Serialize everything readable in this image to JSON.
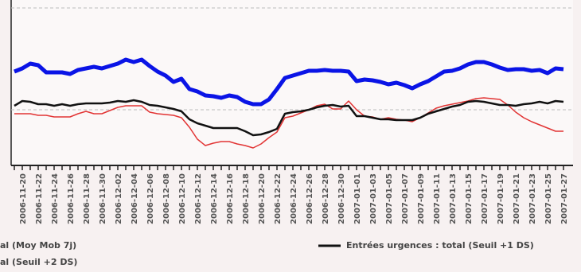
{
  "chart_data": {
    "type": "line",
    "categories": [
      null,
      "2006-11-20",
      null,
      "2006-11-22",
      null,
      "2006-11-24",
      null,
      "2006-11-26",
      null,
      "2006-11-28",
      null,
      "2006-11-30",
      null,
      "2006-12-02",
      null,
      "2006-12-04",
      null,
      "2006-12-06",
      null,
      "2006-12-08",
      null,
      "2006-12-10",
      null,
      "2006-12-12",
      null,
      "2006-12-14",
      null,
      "2006-12-16",
      null,
      "2006-12-18",
      null,
      "2006-12-20",
      null,
      "2006-12-22",
      null,
      "2006-12-24",
      null,
      "2006-12-26",
      null,
      "2006-12-28",
      null,
      "2006-12-30",
      null,
      "2007-01-01",
      null,
      "2007-01-03",
      null,
      "2007-01-05",
      null,
      "2007-01-07",
      null,
      "2007-01-09",
      null,
      "2007-01-11",
      null,
      "2007-01-13",
      null,
      "2007-01-15",
      null,
      "2007-01-17",
      null,
      "2007-01-19",
      null,
      "2007-01-21",
      null,
      "2007-01-23",
      null,
      "2007-01-25",
      null,
      "2007-01-27"
    ],
    "series": [
      {
        "name": "al (Moy Mob 7j)",
        "color": "#0a14e6",
        "values": [
          59,
          61,
          64,
          63,
          58.5,
          58.5,
          58.5,
          57.5,
          60,
          61,
          62,
          61,
          62.5,
          64,
          66.5,
          65,
          66.5,
          62.5,
          59,
          56.5,
          52.5,
          54.5,
          48,
          46.5,
          44,
          43.5,
          42.5,
          44,
          43,
          40,
          38.5,
          38.5,
          41.5,
          48,
          55,
          56.5,
          58,
          59.5,
          59.5,
          60,
          59.5,
          59.5,
          59,
          53,
          54,
          53.5,
          52.5,
          51,
          52,
          50.5,
          48.5,
          51,
          53,
          56,
          59,
          59.5,
          61,
          63.5,
          65,
          65,
          63.5,
          61.5,
          60,
          60.5,
          60.5,
          59.5,
          60,
          58,
          61,
          60.5
        ]
      },
      {
        "name": "Entrées urgences : total (Seuil +1 DS)",
        "color": "#111111",
        "values": [
          37.5,
          40.5,
          40,
          38.5,
          38.5,
          37.5,
          38.5,
          37.5,
          38.5,
          39,
          39,
          39,
          39.5,
          40.5,
          40,
          41,
          40,
          38,
          37.5,
          36.5,
          35.5,
          34,
          29,
          26.5,
          25,
          23.5,
          23.5,
          23.5,
          23.5,
          21.5,
          19,
          19.5,
          21,
          23,
          32.5,
          33.5,
          34,
          35,
          36.5,
          37.5,
          38,
          37,
          37.5,
          31,
          31,
          30,
          29,
          29,
          28.5,
          28.5,
          28.5,
          30,
          32.5,
          34,
          35.5,
          37,
          38,
          40,
          40.5,
          40,
          39,
          38,
          38,
          37.5,
          38.5,
          39,
          40,
          39,
          40.5,
          40
        ]
      },
      {
        "name": "al (Seuil +2 DS)",
        "color": "#e23434",
        "values": [
          32.5,
          32.5,
          32.5,
          31.5,
          31.5,
          30.5,
          30.5,
          30.5,
          32.5,
          34,
          32.5,
          32.5,
          34.5,
          36.5,
          37.5,
          37.5,
          37.5,
          33.5,
          32.5,
          32,
          31.5,
          30,
          24,
          16.5,
          12.5,
          14,
          15,
          15,
          13.5,
          12.5,
          11,
          13.5,
          17.5,
          21,
          30,
          31,
          33,
          35,
          37.5,
          38.5,
          35.5,
          35.5,
          40.5,
          35,
          31,
          30.5,
          29,
          30,
          29,
          28.5,
          27.5,
          30,
          33,
          36,
          37.5,
          38.5,
          39.5,
          40.5,
          42,
          42.5,
          42,
          41.5,
          38,
          33.5,
          30,
          27.5,
          25.5,
          23.5,
          21.5,
          21.5
        ]
      }
    ],
    "ylim": [
      0,
      100
    ],
    "yticks": [
      35,
      99
    ],
    "grid": true
  }
}
